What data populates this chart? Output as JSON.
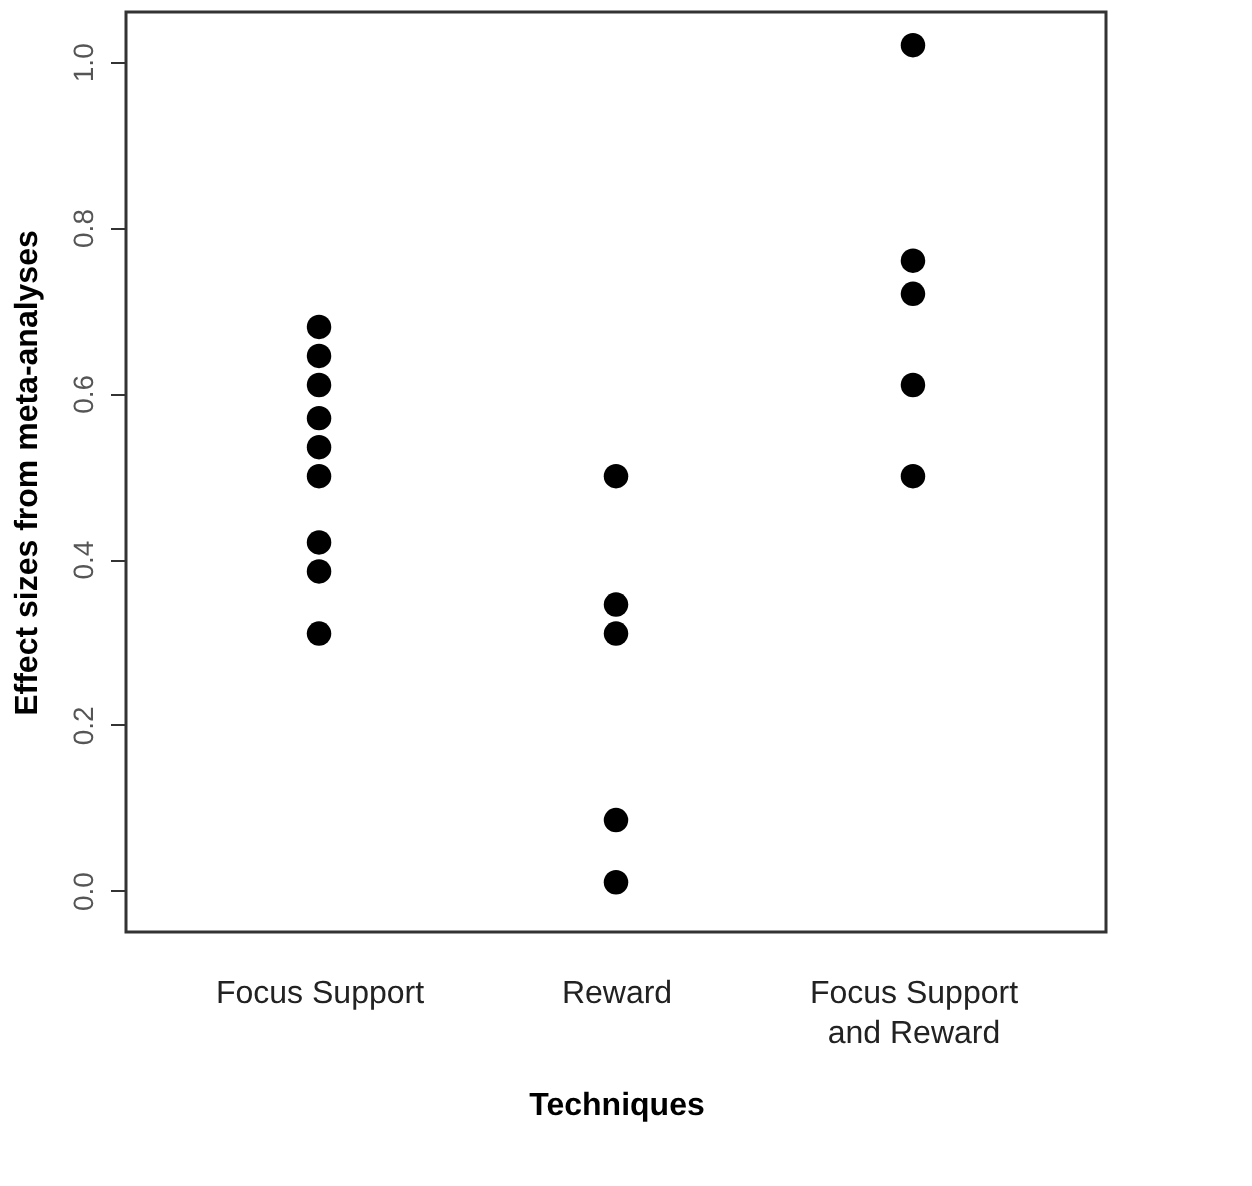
{
  "chart_data": {
    "type": "scatter",
    "xlabel": "Techniques",
    "ylabel": "Effect sizes from meta-analyses",
    "categories": [
      "Focus Support",
      "Reward",
      "Focus Support\nand Reward"
    ],
    "series": [
      {
        "color": "#000000",
        "x": [
          "Focus Support",
          "Focus Support",
          "Focus Support",
          "Focus Support",
          "Focus Support",
          "Focus Support",
          "Focus Support",
          "Focus Support",
          "Focus Support",
          "Reward",
          "Reward",
          "Reward",
          "Reward",
          "Reward",
          "Focus Support\nand Reward",
          "Focus Support\nand Reward",
          "Focus Support\nand Reward",
          "Focus Support\nand Reward",
          "Focus Support\nand Reward"
        ],
        "values": [
          0.68,
          0.645,
          0.61,
          0.57,
          0.535,
          0.5,
          0.42,
          0.385,
          0.31,
          0.5,
          0.345,
          0.31,
          0.085,
          0.01,
          1.02,
          0.76,
          0.72,
          0.61,
          0.5
        ]
      }
    ],
    "ylim": [
      -0.05,
      1.06
    ],
    "yticks": [
      {
        "value": 0,
        "label": "0.0"
      },
      0.2,
      0.4,
      0.6,
      0.8,
      {
        "value": 1,
        "label": "1.0"
      }
    ],
    "grid": false
  }
}
